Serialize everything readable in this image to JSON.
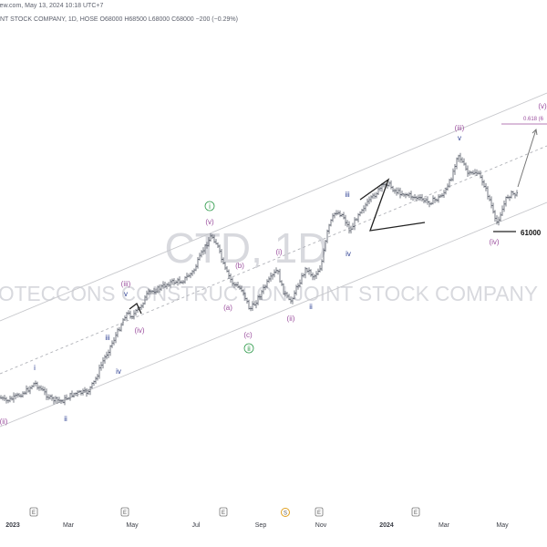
{
  "header": {
    "line1": "iew.com, May 13, 2024 10:18 UTC+7",
    "line2": "INT STOCK COMPANY, 1D, HOSE  O68000  H68500  L68000  C68000  −200 (−0.29%)"
  },
  "watermark": {
    "symbol": "CTD, 1D",
    "name": "OTECCONS CONSTRUCTION JOINT STOCK COMPANY"
  },
  "chart_data": {
    "type": "ohlc",
    "title": "",
    "xlabel": "",
    "ylabel": "",
    "x_ticks": [
      "2023",
      "Mar",
      "May",
      "Jul",
      "Sep",
      "Nov",
      "2024",
      "Mar",
      "May"
    ],
    "price_levels": [
      {
        "label": "61000",
        "value": 61000
      },
      {
        "label": "0.618 (6",
        "value": null
      }
    ],
    "wave_labels": [
      {
        "text": "(ii)",
        "color": "#9b4f9e"
      },
      {
        "text": "i",
        "color": "#2c3e92"
      },
      {
        "text": "ii",
        "color": "#2c3e92"
      },
      {
        "text": "iii",
        "color": "#2c3e92"
      },
      {
        "text": "iv",
        "color": "#2c3e92"
      },
      {
        "text": "v",
        "color": "#2c3e92"
      },
      {
        "text": "(iii)",
        "color": "#9b4f9e"
      },
      {
        "text": "(iv)",
        "color": "#9b4f9e"
      },
      {
        "text": "i",
        "color": "#2e9a4a"
      },
      {
        "text": "(v)",
        "color": "#9b4f9e"
      },
      {
        "text": "(a)",
        "color": "#9b4f9e"
      },
      {
        "text": "(b)",
        "color": "#9b4f9e"
      },
      {
        "text": "(c)",
        "color": "#9b4f9e"
      },
      {
        "text": "ii",
        "color": "#2e9a4a"
      },
      {
        "text": "(i)",
        "color": "#9b4f9e"
      },
      {
        "text": "(ii)",
        "color": "#9b4f9e"
      },
      {
        "text": "ii",
        "color": "#2c3e92"
      },
      {
        "text": "iii",
        "color": "#2c3e92"
      },
      {
        "text": "iv",
        "color": "#2c3e92"
      },
      {
        "text": "(iii)",
        "color": "#9b4f9e"
      },
      {
        "text": "v",
        "color": "#2c3e92"
      },
      {
        "text": "(iv)",
        "color": "#9b4f9e"
      },
      {
        "text": "(v)",
        "color": "#9b4f9e"
      }
    ],
    "events": [
      "E",
      "E",
      "E",
      "E",
      "S",
      "E",
      "E"
    ]
  },
  "colors": {
    "bars": "#555a66",
    "channel": "#c7c8cc",
    "midline": "#b0b2b8",
    "purple": "#9b4f9e",
    "blue": "#2c3e92",
    "green": "#2e9a4a",
    "dividend": "#e0a020"
  }
}
